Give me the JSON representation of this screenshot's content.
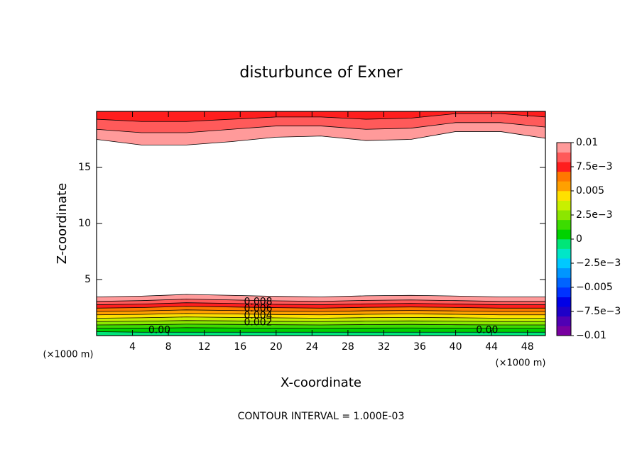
{
  "chart_data": {
    "type": "contour",
    "title": "disturbunce of Exner",
    "x_label": "X-coordinate",
    "y_label": "Z-coordinate",
    "x_unit": "(×1000 m)",
    "x_unit_right": "(×1000 m)",
    "note": "CONTOUR INTERVAL = 1.000E-03",
    "xlim": [
      0,
      50
    ],
    "ylim": [
      0,
      20
    ],
    "xticks": [
      4,
      8,
      12,
      16,
      20,
      24,
      28,
      32,
      36,
      40,
      44,
      48
    ],
    "yticks": [
      5,
      10,
      15
    ],
    "x": [
      0,
      5,
      10,
      15,
      20,
      25,
      30,
      35,
      40,
      45,
      50
    ],
    "contour_interval": 0.001,
    "lower_contours": [
      {
        "level": 0.0,
        "labels": [
          "0.00",
          "0.00"
        ],
        "z": [
          0.35,
          0.3,
          0.3,
          0.3,
          0.3,
          0.3,
          0.3,
          0.3,
          0.3,
          0.3,
          0.3
        ]
      },
      {
        "level": 0.001,
        "z": [
          0.65,
          0.66,
          0.7,
          0.68,
          0.66,
          0.65,
          0.67,
          0.68,
          0.66,
          0.65,
          0.65
        ]
      },
      {
        "level": 0.002,
        "labels": [
          "0.002"
        ],
        "z": [
          0.95,
          0.97,
          1.02,
          1.0,
          0.97,
          0.95,
          0.98,
          1.0,
          0.97,
          0.95,
          0.95
        ]
      },
      {
        "level": 0.003,
        "z": [
          1.25,
          1.28,
          1.34,
          1.31,
          1.27,
          1.25,
          1.29,
          1.31,
          1.28,
          1.25,
          1.25
        ]
      },
      {
        "level": 0.004,
        "labels": [
          "0.004"
        ],
        "z": [
          1.55,
          1.59,
          1.66,
          1.62,
          1.58,
          1.55,
          1.6,
          1.62,
          1.59,
          1.55,
          1.55
        ]
      },
      {
        "level": 0.005,
        "z": [
          1.85,
          1.89,
          1.97,
          1.93,
          1.88,
          1.85,
          1.9,
          1.93,
          1.9,
          1.85,
          1.85
        ]
      },
      {
        "level": 0.006,
        "labels": [
          "0.006"
        ],
        "z": [
          2.15,
          2.2,
          2.29,
          2.24,
          2.18,
          2.15,
          2.21,
          2.24,
          2.2,
          2.15,
          2.15
        ]
      },
      {
        "level": 0.007,
        "z": [
          2.45,
          2.5,
          2.61,
          2.55,
          2.49,
          2.45,
          2.52,
          2.55,
          2.51,
          2.45,
          2.45
        ]
      },
      {
        "level": 0.008,
        "labels": [
          "0.008"
        ],
        "z": [
          2.75,
          2.81,
          2.93,
          2.87,
          2.79,
          2.75,
          2.83,
          2.87,
          2.82,
          2.75,
          2.75
        ]
      },
      {
        "level": 0.009,
        "z": [
          3.05,
          3.12,
          3.25,
          3.18,
          3.1,
          3.05,
          3.14,
          3.18,
          3.12,
          3.05,
          3.05
        ]
      },
      {
        "level": 0.01,
        "z": [
          3.45,
          3.52,
          3.67,
          3.59,
          3.5,
          3.45,
          3.55,
          3.59,
          3.53,
          3.45,
          3.45
        ]
      }
    ],
    "upper_contours": [
      {
        "level": 0.01,
        "z": [
          17.5,
          17.0,
          17.0,
          17.3,
          17.7,
          17.8,
          17.4,
          17.5,
          18.2,
          18.2,
          17.6
        ]
      },
      {
        "level": 0.009,
        "z": [
          18.4,
          18.1,
          18.1,
          18.4,
          18.7,
          18.7,
          18.4,
          18.5,
          19.0,
          19.0,
          18.6
        ]
      },
      {
        "level": 0.008,
        "z": [
          19.3,
          19.1,
          19.1,
          19.3,
          19.5,
          19.5,
          19.3,
          19.4,
          19.8,
          19.8,
          19.5
        ]
      }
    ],
    "colorbar_lim": [
      -0.01,
      0.01
    ],
    "colorbar_ticks": [
      {
        "value": -0.01,
        "label": "−0.01"
      },
      {
        "value": -0.0075,
        "label": "−7.5e−3"
      },
      {
        "value": -0.005,
        "label": "−0.005"
      },
      {
        "value": -0.0025,
        "label": "−2.5e−3"
      },
      0,
      {
        "value": 0.0025,
        "label": "2.5e−3"
      },
      0.005,
      {
        "value": 0.0075,
        "label": "7.5e−3"
      },
      0.01
    ],
    "colors": [
      "#7800a0",
      "#5000b4",
      "#1e00c8",
      "#0000e6",
      "#0032ff",
      "#0064ff",
      "#0096ff",
      "#00c8ff",
      "#00e6c8",
      "#00e678",
      "#00d200",
      "#3cdc00",
      "#8ce600",
      "#c8f000",
      "#ffe000",
      "#ffa000",
      "#ff7800",
      "#ff1e1e",
      "#ff5a5a",
      "#ff9a9a"
    ]
  }
}
